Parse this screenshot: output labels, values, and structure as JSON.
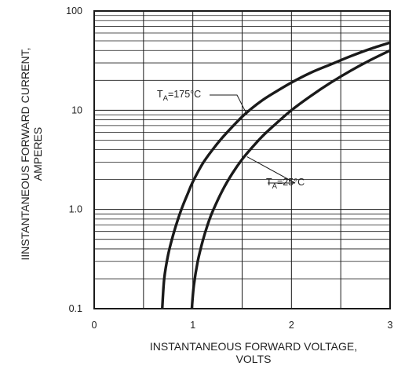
{
  "chart_data": {
    "type": "line",
    "title": "",
    "xlabel": [
      "INSTANTANEOUS FORWARD VOLTAGE,",
      "VOLTS"
    ],
    "ylabel": [
      "IINSTANTANEOUS FORWARD CURRENT,",
      "AMPERES"
    ],
    "xlim": [
      0,
      3
    ],
    "ylim": [
      0.1,
      100
    ],
    "yscale": "log",
    "grid": true,
    "x_ticks": [
      0,
      1,
      2,
      3
    ],
    "x_tick_labels": [
      "0",
      "1",
      "2",
      "3"
    ],
    "y_ticks": [
      0.1,
      1,
      10,
      100
    ],
    "y_tick_labels": [
      "0.1",
      "1.0",
      "10",
      "100"
    ],
    "series": [
      {
        "name": "T_A=175°C",
        "label_main": "T",
        "label_sub": "A",
        "label_rest": "=175°C",
        "x": [
          0.69,
          0.71,
          0.75,
          0.8,
          0.85,
          0.9,
          0.95,
          1.0,
          1.1,
          1.2,
          1.3,
          1.4,
          1.5,
          1.6,
          1.7,
          1.8,
          2.0,
          2.2,
          2.4,
          2.6,
          2.8,
          3.0
        ],
        "y": [
          0.1,
          0.2,
          0.35,
          0.55,
          0.8,
          1.1,
          1.45,
          1.9,
          2.9,
          4.0,
          5.3,
          6.8,
          8.6,
          10.5,
          12.5,
          14.5,
          19.0,
          24.0,
          29.0,
          35.0,
          41.5,
          48.0
        ]
      },
      {
        "name": "T_A=25°C",
        "label_main": "T",
        "label_sub": "A",
        "label_rest": "=25°C",
        "x": [
          0.99,
          1.01,
          1.05,
          1.1,
          1.15,
          1.2,
          1.3,
          1.4,
          1.5,
          1.6,
          1.7,
          1.8,
          2.0,
          2.2,
          2.4,
          2.6,
          2.8,
          3.0
        ],
        "y": [
          0.1,
          0.17,
          0.3,
          0.48,
          0.7,
          0.95,
          1.55,
          2.3,
          3.2,
          4.2,
          5.4,
          6.7,
          10.0,
          14.0,
          19.0,
          25.0,
          32.0,
          40.0
        ]
      }
    ]
  }
}
